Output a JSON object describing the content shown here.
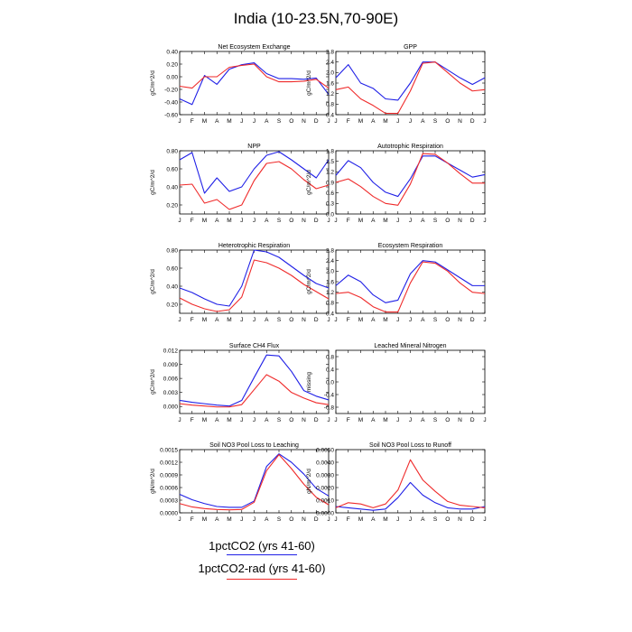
{
  "title": "India (10-23.5N,70-90E)",
  "legend": [
    {
      "label": "1pctCO2 (yrs 41-60)",
      "color": "#1f1fe6"
    },
    {
      "label": "1pctCO2-rad (yrs 41-60)",
      "color": "#ef2a2a"
    }
  ],
  "chart_data": [
    {
      "type": "line",
      "title": "Net Ecosystem Exchange",
      "ylabel": "gC/m^2/d",
      "x": [
        "J",
        "F",
        "M",
        "A",
        "M",
        "J",
        "J",
        "A",
        "S",
        "O",
        "N",
        "D",
        "J"
      ],
      "ylim": [
        -0.6,
        0.4
      ],
      "yticks": [
        -0.6,
        -0.4,
        -0.2,
        0.0,
        0.2,
        0.4
      ],
      "ytick_labels": [
        "-0.60",
        "-0.40",
        "-0.20",
        "0.00",
        "0.20",
        "0.40"
      ],
      "series": [
        {
          "values": [
            -0.35,
            -0.44,
            0.02,
            -0.12,
            0.12,
            0.19,
            0.22,
            0.05,
            -0.03,
            -0.03,
            -0.04,
            -0.02,
            -0.28
          ]
        },
        {
          "values": [
            -0.15,
            -0.18,
            0.0,
            0.0,
            0.15,
            0.18,
            0.2,
            0.0,
            -0.08,
            -0.08,
            -0.07,
            -0.04,
            -0.18
          ]
        }
      ]
    },
    {
      "type": "line",
      "title": "GPP",
      "ylabel": "gC/m^2/d",
      "x": [
        "J",
        "F",
        "M",
        "A",
        "M",
        "J",
        "J",
        "A",
        "S",
        "O",
        "N",
        "D",
        "J"
      ],
      "ylim": [
        0.4,
        2.8
      ],
      "yticks": [
        0.4,
        0.8,
        1.2,
        1.6,
        2.0,
        2.4,
        2.8
      ],
      "ytick_labels": [
        "0.4",
        "0.8",
        "1.2",
        "1.6",
        "2.0",
        "2.4",
        "2.8"
      ],
      "series": [
        {
          "values": [
            1.8,
            2.3,
            1.6,
            1.4,
            1.0,
            0.95,
            1.6,
            2.4,
            2.4,
            2.1,
            1.8,
            1.55,
            1.8
          ]
        },
        {
          "values": [
            1.35,
            1.45,
            1.0,
            0.75,
            0.45,
            0.45,
            1.3,
            2.35,
            2.4,
            2.0,
            1.6,
            1.3,
            1.35
          ]
        }
      ]
    },
    {
      "type": "line",
      "title": "NPP",
      "ylabel": "gC/m^2/d",
      "x": [
        "J",
        "F",
        "M",
        "A",
        "M",
        "J",
        "J",
        "A",
        "S",
        "O",
        "N",
        "D",
        "J"
      ],
      "ylim": [
        0.1,
        0.8
      ],
      "yticks": [
        0.2,
        0.4,
        0.6,
        0.8
      ],
      "ytick_labels": [
        "0.20",
        "0.40",
        "0.60",
        "0.80"
      ],
      "series": [
        {
          "values": [
            0.7,
            0.78,
            0.33,
            0.5,
            0.35,
            0.4,
            0.6,
            0.75,
            0.79,
            0.7,
            0.6,
            0.5,
            0.7
          ]
        },
        {
          "values": [
            0.42,
            0.43,
            0.22,
            0.26,
            0.15,
            0.2,
            0.47,
            0.66,
            0.68,
            0.6,
            0.48,
            0.38,
            0.42
          ]
        }
      ]
    },
    {
      "type": "line",
      "title": "Autotrophic Respiration",
      "ylabel": "gC/m^2/d",
      "x": [
        "J",
        "F",
        "M",
        "A",
        "M",
        "J",
        "J",
        "A",
        "S",
        "O",
        "N",
        "D",
        "J"
      ],
      "ylim": [
        0.0,
        1.8
      ],
      "yticks": [
        0.0,
        0.3,
        0.6,
        0.9,
        1.2,
        1.5,
        1.8
      ],
      "ytick_labels": [
        "0.0",
        "0.3",
        "0.6",
        "0.9",
        "1.2",
        "1.5",
        "1.8"
      ],
      "series": [
        {
          "values": [
            1.1,
            1.52,
            1.32,
            0.9,
            0.62,
            0.5,
            1.0,
            1.65,
            1.65,
            1.45,
            1.25,
            1.05,
            1.12
          ]
        },
        {
          "values": [
            0.9,
            1.0,
            0.78,
            0.5,
            0.3,
            0.25,
            0.85,
            1.72,
            1.7,
            1.45,
            1.15,
            0.88,
            0.88
          ]
        }
      ]
    },
    {
      "type": "line",
      "title": "Heterotrophic Respiration",
      "ylabel": "gC/m^2/d",
      "x": [
        "J",
        "F",
        "M",
        "A",
        "M",
        "J",
        "J",
        "A",
        "S",
        "O",
        "N",
        "D",
        "J"
      ],
      "ylim": [
        0.1,
        0.8
      ],
      "yticks": [
        0.2,
        0.4,
        0.6,
        0.8
      ],
      "ytick_labels": [
        "0.20",
        "0.40",
        "0.60",
        "0.80"
      ],
      "series": [
        {
          "values": [
            0.38,
            0.33,
            0.26,
            0.2,
            0.18,
            0.4,
            0.8,
            0.78,
            0.72,
            0.62,
            0.52,
            0.43,
            0.38
          ]
        },
        {
          "values": [
            0.27,
            0.2,
            0.15,
            0.12,
            0.14,
            0.28,
            0.69,
            0.66,
            0.6,
            0.52,
            0.42,
            0.34,
            0.26
          ]
        }
      ]
    },
    {
      "type": "line",
      "title": "Ecosystem Respiration",
      "ylabel": "gC/m^2/d",
      "x": [
        "J",
        "F",
        "M",
        "A",
        "M",
        "J",
        "J",
        "A",
        "S",
        "O",
        "N",
        "D",
        "J"
      ],
      "ylim": [
        0.4,
        2.8
      ],
      "yticks": [
        0.4,
        0.8,
        1.2,
        1.6,
        2.0,
        2.4,
        2.8
      ],
      "ytick_labels": [
        "0.4",
        "0.8",
        "1.2",
        "1.6",
        "2.0",
        "2.4",
        "2.8"
      ],
      "series": [
        {
          "values": [
            1.45,
            1.85,
            1.6,
            1.1,
            0.8,
            0.9,
            1.9,
            2.4,
            2.35,
            2.05,
            1.75,
            1.45,
            1.45
          ]
        },
        {
          "values": [
            1.15,
            1.2,
            1.0,
            0.65,
            0.45,
            0.45,
            1.55,
            2.35,
            2.3,
            2.0,
            1.55,
            1.2,
            1.15
          ]
        }
      ]
    },
    {
      "type": "line",
      "title": "Surface CH4 Flux",
      "ylabel": "gC/m^2/d",
      "x": [
        "J",
        "F",
        "M",
        "A",
        "M",
        "J",
        "J",
        "A",
        "S",
        "O",
        "N",
        "D",
        "J"
      ],
      "ylim": [
        -0.0015,
        0.012
      ],
      "yticks": [
        0.0,
        0.003,
        0.006,
        0.009,
        0.012
      ],
      "ytick_labels": [
        "0.000",
        "0.003",
        "0.006",
        "0.009",
        "0.012"
      ],
      "series": [
        {
          "values": [
            0.0013,
            0.0009,
            0.0006,
            0.0003,
            0.0001,
            0.0013,
            0.0062,
            0.011,
            0.0108,
            0.0075,
            0.0034,
            0.0022,
            0.0014
          ]
        },
        {
          "values": [
            0.0006,
            0.0003,
            0.0001,
            -0.0001,
            -0.0001,
            0.0004,
            0.0036,
            0.0068,
            0.0054,
            0.003,
            0.0018,
            0.0008,
            0.0004
          ]
        }
      ]
    },
    {
      "type": "line",
      "title": "Leached Mineral Nitrogen",
      "ylabel": "missing",
      "x": [
        "J",
        "F",
        "M",
        "A",
        "M",
        "J",
        "J",
        "A",
        "S",
        "O",
        "N",
        "D",
        "J"
      ],
      "ylim": [
        -1.0,
        1.0
      ],
      "yticks": [
        -0.8,
        -0.4,
        0.0,
        0.4,
        0.8
      ],
      "ytick_labels": [
        "-0.8",
        "-0.4",
        "0.0",
        "0.4",
        "0.8"
      ],
      "series": []
    },
    {
      "type": "line",
      "title": "Soil NO3 Pool Loss to Leaching",
      "ylabel": "gN/m^2/d",
      "x": [
        "J",
        "F",
        "M",
        "A",
        "M",
        "J",
        "J",
        "A",
        "S",
        "O",
        "N",
        "D",
        "J"
      ],
      "ylim": [
        0.0,
        0.0015
      ],
      "yticks": [
        0.0,
        0.0003,
        0.0006,
        0.0009,
        0.0012,
        0.0015
      ],
      "ytick_labels": [
        "0.0000",
        "0.0003",
        "0.0006",
        "0.0009",
        "0.0012",
        "0.0015"
      ],
      "series": [
        {
          "values": [
            0.00044,
            0.00031,
            0.00022,
            0.00015,
            0.00013,
            0.00013,
            0.00028,
            0.0011,
            0.0014,
            0.0012,
            0.00092,
            0.00058,
            0.0004
          ]
        },
        {
          "values": [
            0.00022,
            0.00014,
            0.0001,
            8e-05,
            7e-05,
            8e-05,
            0.00025,
            0.001,
            0.00138,
            0.00105,
            0.00068,
            0.00037,
            0.00019
          ]
        }
      ]
    },
    {
      "type": "line",
      "title": "Soil NO3 Pool Loss to Runoff",
      "ylabel": "gN/m^2/d",
      "x": [
        "J",
        "F",
        "M",
        "A",
        "M",
        "J",
        "J",
        "A",
        "S",
        "O",
        "N",
        "D",
        "J"
      ],
      "ylim": [
        0.0,
        0.005
      ],
      "yticks": [
        0.0,
        0.001,
        0.002,
        0.003,
        0.004,
        0.005
      ],
      "ytick_labels": [
        "0.0000",
        "0.0010",
        "0.0020",
        "0.0030",
        "0.0040",
        "0.0050"
      ],
      "series": [
        {
          "values": [
            0.0005,
            0.0004,
            0.0003,
            0.0002,
            0.0003,
            0.0012,
            0.0024,
            0.0014,
            0.0008,
            0.0004,
            0.0003,
            0.0003,
            0.0005
          ]
        },
        {
          "values": [
            0.0004,
            0.0008,
            0.0007,
            0.0004,
            0.0007,
            0.0018,
            0.0042,
            0.0026,
            0.0017,
            0.0009,
            0.0006,
            0.0005,
            0.0004
          ]
        }
      ]
    }
  ]
}
